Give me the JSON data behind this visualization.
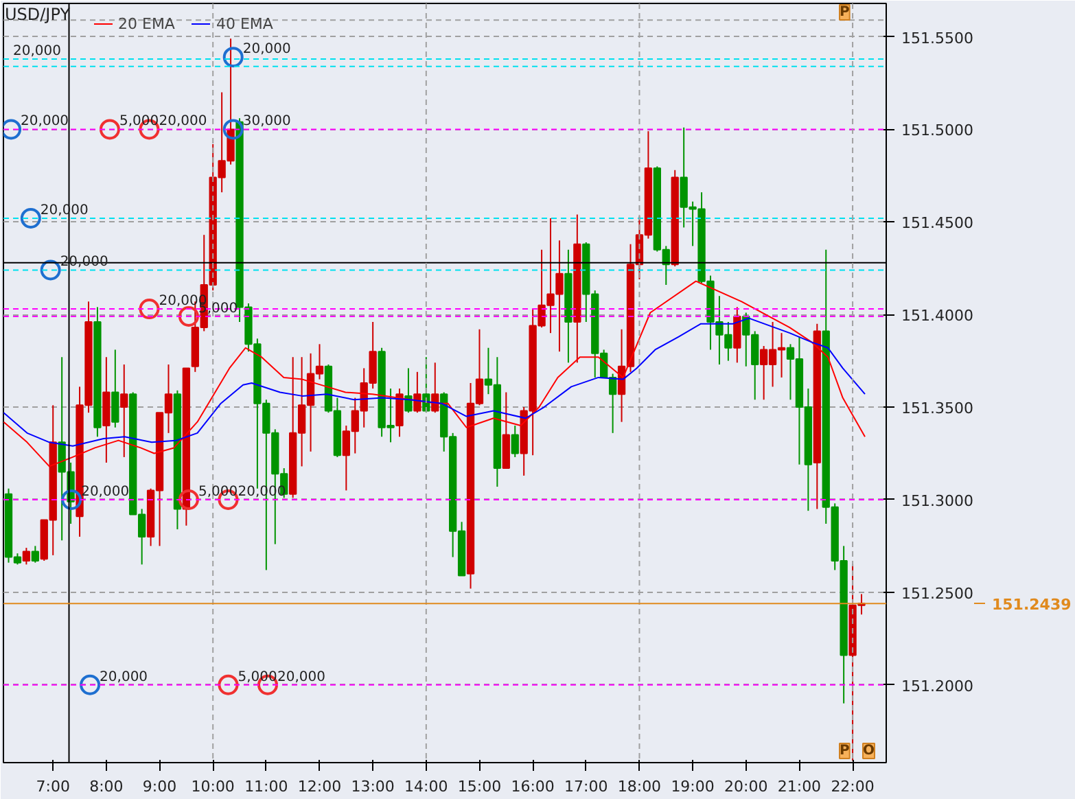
{
  "chart_data": {
    "type": "candlestick",
    "title": "USD/JPY",
    "x": [
      6.1667,
      6.3333,
      6.5,
      6.6667,
      6.8333,
      7,
      7.1667,
      7.3333,
      7.5,
      7.6667,
      7.8333,
      8,
      8.1667,
      8.3333,
      8.5,
      8.6667,
      8.8333,
      9,
      9.1667,
      9.3333,
      9.5,
      9.6667,
      9.8333,
      10,
      10.1667,
      10.3333,
      10.5,
      10.6667,
      10.8333,
      11,
      11.1667,
      11.3333,
      11.5,
      11.6667,
      11.8333,
      12,
      12.1667,
      12.3333,
      12.5,
      12.6667,
      12.8333,
      13,
      13.1667,
      13.3333,
      13.5,
      13.6667,
      13.8333,
      14,
      14.1667,
      14.3333,
      14.5,
      14.6667,
      14.8333,
      15,
      15.1667,
      15.3333,
      15.5,
      15.6667,
      15.8333,
      16,
      16.1667,
      16.3333,
      16.5,
      16.6667,
      16.8333,
      17,
      17.1667,
      17.3333,
      17.5,
      17.6667,
      17.8333,
      18,
      18.1667,
      18.3333,
      18.5,
      18.6667,
      18.8333,
      19,
      19.1667,
      19.3333,
      19.5,
      19.6667,
      19.8333,
      20,
      20.1667,
      20.3333,
      20.5,
      20.6667,
      20.8333,
      21,
      21.1667,
      21.3333,
      21.5,
      21.6667,
      21.8333,
      22,
      22.1667
    ],
    "ohlc": [
      [
        151.303,
        151.306,
        151.266,
        151.269
      ],
      [
        151.269,
        151.271,
        151.265,
        151.266
      ],
      [
        151.267,
        151.274,
        151.265,
        151.272
      ],
      [
        151.272,
        151.275,
        151.266,
        151.267
      ],
      [
        151.268,
        151.289,
        151.267,
        151.289
      ],
      [
        151.289,
        151.351,
        151.27,
        151.331
      ],
      [
        151.331,
        151.377,
        151.278,
        151.315
      ],
      [
        151.315,
        151.32,
        151.287,
        151.299
      ],
      [
        151.291,
        151.361,
        151.28,
        151.351
      ],
      [
        151.351,
        151.407,
        151.347,
        151.396
      ],
      [
        151.396,
        151.404,
        151.334,
        151.339
      ],
      [
        151.34,
        151.377,
        151.32,
        151.358
      ],
      [
        151.358,
        151.381,
        151.339,
        151.342
      ],
      [
        151.35,
        151.373,
        151.323,
        151.357
      ],
      [
        151.357,
        151.358,
        151.292,
        151.292
      ],
      [
        151.292,
        151.295,
        151.265,
        151.28
      ],
      [
        151.28,
        151.306,
        151.275,
        151.305
      ],
      [
        151.305,
        151.347,
        151.275,
        151.347
      ],
      [
        151.347,
        151.373,
        151.336,
        151.357
      ],
      [
        151.357,
        151.359,
        151.284,
        151.295
      ],
      [
        151.295,
        151.371,
        151.286,
        151.371
      ],
      [
        151.372,
        151.407,
        151.369,
        151.393
      ],
      [
        151.393,
        151.443,
        151.391,
        151.416
      ],
      [
        151.416,
        151.492,
        151.413,
        151.474
      ],
      [
        151.474,
        151.52,
        151.466,
        151.483
      ],
      [
        151.483,
        151.549,
        151.481,
        151.5
      ],
      [
        151.504,
        151.506,
        151.396,
        151.404
      ],
      [
        151.404,
        151.406,
        151.38,
        151.384
      ],
      [
        151.384,
        151.387,
        151.306,
        151.352
      ],
      [
        151.352,
        151.354,
        151.262,
        151.336
      ],
      [
        151.336,
        151.338,
        151.276,
        151.314
      ],
      [
        151.314,
        151.317,
        151.301,
        151.303
      ],
      [
        151.303,
        151.377,
        151.301,
        151.336
      ],
      [
        151.336,
        151.377,
        151.318,
        151.351
      ],
      [
        151.351,
        151.379,
        151.326,
        151.368
      ],
      [
        151.368,
        151.384,
        151.365,
        151.372
      ],
      [
        151.372,
        151.373,
        151.347,
        151.348
      ],
      [
        151.348,
        151.355,
        151.323,
        151.324
      ],
      [
        151.324,
        151.34,
        151.305,
        151.337
      ],
      [
        151.337,
        151.355,
        151.325,
        151.348
      ],
      [
        151.348,
        151.371,
        151.339,
        151.363
      ],
      [
        151.363,
        151.396,
        151.36,
        151.38
      ],
      [
        151.38,
        151.382,
        151.334,
        151.339
      ],
      [
        151.34,
        151.36,
        151.331,
        151.339
      ],
      [
        151.34,
        151.36,
        151.334,
        151.357
      ],
      [
        151.356,
        151.371,
        151.347,
        151.348
      ],
      [
        151.348,
        151.369,
        151.347,
        151.357
      ],
      [
        151.357,
        151.377,
        151.347,
        151.348
      ],
      [
        151.348,
        151.374,
        151.347,
        151.357
      ],
      [
        151.357,
        151.358,
        151.326,
        151.334
      ],
      [
        151.334,
        151.336,
        151.269,
        151.283
      ],
      [
        151.283,
        151.288,
        151.259,
        151.259
      ],
      [
        151.26,
        151.363,
        151.252,
        151.352
      ],
      [
        151.352,
        151.392,
        151.351,
        151.365
      ],
      [
        151.365,
        151.382,
        151.357,
        151.362
      ],
      [
        151.362,
        151.377,
        151.307,
        151.317
      ],
      [
        151.317,
        151.358,
        151.317,
        151.335
      ],
      [
        151.335,
        151.34,
        151.323,
        151.325
      ],
      [
        151.325,
        151.35,
        151.313,
        151.348
      ],
      [
        151.348,
        151.403,
        151.324,
        151.394
      ],
      [
        151.394,
        151.435,
        151.393,
        151.405
      ],
      [
        151.405,
        151.452,
        151.39,
        151.411
      ],
      [
        151.411,
        151.44,
        151.38,
        151.422
      ],
      [
        151.422,
        151.435,
        151.374,
        151.396
      ],
      [
        151.396,
        151.454,
        151.374,
        151.438
      ],
      [
        151.438,
        151.439,
        151.396,
        151.411
      ],
      [
        151.411,
        151.413,
        151.366,
        151.379
      ],
      [
        151.379,
        151.381,
        151.366,
        151.366
      ],
      [
        151.366,
        151.368,
        151.336,
        151.357
      ],
      [
        151.357,
        151.392,
        151.342,
        151.372
      ],
      [
        151.372,
        151.438,
        151.369,
        151.427
      ],
      [
        151.427,
        151.453,
        151.419,
        151.443
      ],
      [
        151.443,
        151.499,
        151.441,
        151.479
      ],
      [
        151.479,
        151.48,
        151.434,
        151.435
      ],
      [
        151.435,
        151.437,
        151.416,
        151.427
      ],
      [
        151.427,
        151.478,
        151.426,
        151.474
      ],
      [
        151.474,
        151.501,
        151.447,
        151.458
      ],
      [
        151.458,
        151.461,
        151.437,
        151.457
      ],
      [
        151.457,
        151.466,
        151.417,
        151.418
      ],
      [
        151.418,
        151.421,
        151.381,
        151.396
      ],
      [
        151.396,
        151.41,
        151.373,
        151.389
      ],
      [
        151.389,
        151.396,
        151.375,
        151.382
      ],
      [
        151.382,
        151.404,
        151.374,
        151.399
      ],
      [
        151.399,
        151.401,
        151.372,
        151.389
      ],
      [
        151.389,
        151.391,
        151.354,
        151.373
      ],
      [
        151.373,
        151.383,
        151.354,
        151.381
      ],
      [
        151.373,
        151.396,
        151.361,
        151.381
      ],
      [
        151.381,
        151.39,
        151.366,
        151.382
      ],
      [
        151.382,
        151.384,
        151.354,
        151.376
      ],
      [
        151.376,
        151.388,
        151.319,
        151.35
      ],
      [
        151.35,
        151.36,
        151.294,
        151.319
      ],
      [
        151.32,
        151.395,
        151.295,
        151.391
      ],
      [
        151.391,
        151.435,
        151.287,
        151.296
      ],
      [
        151.296,
        151.298,
        151.262,
        151.267
      ],
      [
        151.267,
        151.275,
        151.19,
        151.216
      ],
      [
        151.216,
        151.265,
        151.159,
        151.243
      ],
      [
        151.243,
        151.249,
        151.238,
        151.244
      ]
    ],
    "colors": [
      "#009400",
      "#009400",
      "#d00000",
      "#009400",
      "#d00000",
      "#d00000",
      "#009400",
      "#009400",
      "#d00000",
      "#d00000",
      "#009400",
      "#d00000",
      "#009400",
      "#d00000",
      "#009400",
      "#009400",
      "#d00000",
      "#d00000",
      "#d00000",
      "#009400",
      "#d00000",
      "#d00000",
      "#d00000",
      "#d00000",
      "#d00000",
      "#d00000",
      "#009400",
      "#009400",
      "#009400",
      "#009400",
      "#009400",
      "#009400",
      "#d00000",
      "#d00000",
      "#d00000",
      "#d00000",
      "#009400",
      "#009400",
      "#d00000",
      "#d00000",
      "#d00000",
      "#d00000",
      "#009400",
      "#009400",
      "#d00000",
      "#009400",
      "#d00000",
      "#009400",
      "#d00000",
      "#009400",
      "#009400",
      "#009400",
      "#d00000",
      "#d00000",
      "#009400",
      "#009400",
      "#d00000",
      "#009400",
      "#d00000",
      "#d00000",
      "#d00000",
      "#d00000",
      "#d00000",
      "#009400",
      "#d00000",
      "#009400",
      "#009400",
      "#009400",
      "#009400",
      "#d00000",
      "#d00000",
      "#d00000",
      "#d00000",
      "#009400",
      "#009400",
      "#d00000",
      "#009400",
      "#009400",
      "#009400",
      "#009400",
      "#009400",
      "#009400",
      "#d00000",
      "#009400",
      "#009400",
      "#d00000",
      "#d00000",
      "#d00000",
      "#009400",
      "#009400",
      "#009400",
      "#d00000",
      "#009400",
      "#009400",
      "#009400",
      "#d00000",
      "#d00000"
    ],
    "series": [
      {
        "name": "20 EMA",
        "type": "line",
        "color": "#ff0000",
        "x": [
          6.074,
          6.514,
          6.931,
          7.37,
          7.787,
          8.227,
          8.644,
          8.898,
          9.269,
          9.708,
          10.31,
          10.611,
          10.912,
          11.329,
          11.676,
          12.139,
          12.486,
          12.995,
          14.199,
          14.407,
          14.755,
          15.264,
          15.773,
          16.12,
          16.468,
          16.884,
          17.231,
          17.694,
          18.204,
          19.06,
          19.917,
          20.819,
          21.236,
          21.537,
          21.815,
          22.231
        ],
        "values": [
          151.342,
          151.331,
          151.318,
          151.323,
          151.328,
          151.332,
          151.328,
          151.325,
          151.328,
          151.342,
          151.371,
          151.382,
          151.377,
          151.366,
          151.365,
          151.361,
          151.358,
          151.357,
          151.352,
          151.352,
          151.339,
          151.344,
          151.34,
          151.35,
          151.366,
          151.377,
          151.377,
          151.366,
          151.401,
          151.418,
          151.407,
          151.393,
          151.385,
          151.377,
          151.355,
          151.334
        ]
      },
      {
        "name": "40 EMA",
        "type": "line",
        "color": "#0000ff",
        "x": [
          6.074,
          6.514,
          6.931,
          7.37,
          7.949,
          8.343,
          8.852,
          9.315,
          9.708,
          10.148,
          10.565,
          10.727,
          11.259,
          11.676,
          12.139,
          12.648,
          13.181,
          13.69,
          14.292,
          14.755,
          15.264,
          15.866,
          16.213,
          16.722,
          17.231,
          17.694,
          17.949,
          18.296,
          18.736,
          19.153,
          19.755,
          20.056,
          20.819,
          21.236,
          21.537,
          21.815,
          22.231
        ],
        "values": [
          151.347,
          151.336,
          151.331,
          151.329,
          151.333,
          151.334,
          151.331,
          151.332,
          151.336,
          151.352,
          151.362,
          151.363,
          151.358,
          151.356,
          151.357,
          151.354,
          151.355,
          151.354,
          151.352,
          151.345,
          151.348,
          151.344,
          151.35,
          151.361,
          151.366,
          151.365,
          151.371,
          151.381,
          151.388,
          151.395,
          151.395,
          151.398,
          151.39,
          151.385,
          151.382,
          151.371,
          151.357
        ]
      },
      {
        "type": "scatter",
        "marker": "circle",
        "color": "#1e6fd0",
        "x": [
          6.213,
          6.583,
          6.954,
          7.347,
          7.694,
          10.38,
          10.38
        ],
        "values": [
          151.5,
          151.452,
          151.424,
          151.3,
          151.2,
          151.539,
          151.5
        ]
      },
      {
        "type": "scatter",
        "marker": "circle",
        "color": "#f03030",
        "x": [
          8.065,
          8.806,
          8.806,
          9.546,
          9.546,
          10.287,
          10.287,
          11.028
        ],
        "values": [
          151.5,
          151.5,
          151.403,
          151.399,
          151.3,
          151.3,
          151.2,
          151.2
        ]
      }
    ],
    "xlim": [
      6.07,
      22.63
    ],
    "xticks": [
      {
        "value": 7,
        "label": "7:00"
      },
      {
        "value": 8,
        "label": "8:00"
      },
      {
        "value": 9,
        "label": "9:00"
      },
      {
        "value": 10,
        "label": "10:00"
      },
      {
        "value": 11,
        "label": "11:00"
      },
      {
        "value": 12,
        "label": "12:00"
      },
      {
        "value": 13,
        "label": "13:00"
      },
      {
        "value": 14,
        "label": "14:00"
      },
      {
        "value": 15,
        "label": "15:00"
      },
      {
        "value": 16,
        "label": "16:00"
      },
      {
        "value": 17,
        "label": "17:00"
      },
      {
        "value": 18,
        "label": "18:00"
      },
      {
        "value": 19,
        "label": "19:00"
      },
      {
        "value": 20,
        "label": "20:00"
      },
      {
        "value": 21,
        "label": "21:00"
      },
      {
        "value": 22,
        "label": "22:00"
      }
    ],
    "ylim": [
      151.158,
      151.568
    ],
    "yticks": [
      {
        "value": 151.2,
        "label": "151.2000"
      },
      {
        "value": 151.25,
        "label": "151.2500"
      },
      {
        "value": 151.3,
        "label": "151.3000"
      },
      {
        "value": 151.35,
        "label": "151.3500"
      },
      {
        "value": 151.4,
        "label": "151.4000"
      },
      {
        "value": 151.45,
        "label": "151.4500"
      },
      {
        "value": 151.5,
        "label": "151.5000"
      },
      {
        "value": 151.55,
        "label": "151.5500"
      }
    ],
    "grid": "y",
    "legend": "top left",
    "ref_lines": [
      {
        "axis": "y",
        "value": 151.559,
        "color": "#a0a0a0",
        "line_style": "dashed"
      },
      {
        "axis": "y",
        "value": 151.538,
        "color": "#00e0ee",
        "line_style": "dashed"
      },
      {
        "axis": "y",
        "value": 151.534,
        "color": "#00e0ee",
        "line_style": "dashed"
      },
      {
        "axis": "y",
        "value": 151.5,
        "color": "#ff00ff",
        "line_style": "dashed"
      },
      {
        "axis": "y",
        "value": 151.452,
        "color": "#00e0ee",
        "line_style": "dashed"
      },
      {
        "axis": "y",
        "value": 151.424,
        "color": "#00e0ee",
        "line_style": "dashed"
      },
      {
        "axis": "y",
        "value": 151.403,
        "color": "#ff00ff",
        "line_style": "dashed"
      },
      {
        "axis": "y",
        "value": 151.399,
        "color": "#ff00ff",
        "line_style": "dashed"
      },
      {
        "axis": "y",
        "value": 151.3,
        "color": "#ff00ff",
        "line_style": "dashed"
      },
      {
        "axis": "y",
        "value": 151.2,
        "color": "#ff00ff",
        "line_style": "dashed"
      },
      {
        "axis": "y",
        "value": 151.428,
        "color": "#000000",
        "line_style": "solid"
      },
      {
        "axis": "x",
        "value": 7.3,
        "color": "#000000",
        "line_style": "solid"
      },
      {
        "axis": "x",
        "value": 10,
        "color": "#a0a0a0",
        "line_style": "dashed"
      },
      {
        "axis": "x",
        "value": 14,
        "color": "#a0a0a0",
        "line_style": "dashed"
      },
      {
        "axis": "x",
        "value": 18,
        "color": "#a0a0a0",
        "line_style": "dashed"
      },
      {
        "axis": "x",
        "value": 22,
        "color": "#a0a0a0",
        "line_style": "dashed"
      },
      {
        "axis": "y",
        "value": 151.2439,
        "label": "151.2439",
        "color": "#e08a1e",
        "line_style": "solid"
      }
    ],
    "annotations": [
      {
        "text": "20,000",
        "x": 6.07,
        "y": 151.538
      },
      {
        "text": "20,000",
        "x": 6.213,
        "y": 151.5
      },
      {
        "text": "20,000",
        "x": 6.583,
        "y": 151.452
      },
      {
        "text": "20,000",
        "x": 6.954,
        "y": 151.424
      },
      {
        "text": "20,000",
        "x": 7.347,
        "y": 151.3
      },
      {
        "text": "20,000",
        "x": 7.694,
        "y": 151.2
      },
      {
        "text": "20,000",
        "x": 10.38,
        "y": 151.539
      },
      {
        "text": "30,000",
        "x": 10.38,
        "y": 151.5
      },
      {
        "text": "5,000",
        "x": 8.065,
        "y": 151.5
      },
      {
        "text": "20,000",
        "x": 8.806,
        "y": 151.5
      },
      {
        "text": "20,000",
        "x": 8.806,
        "y": 151.403
      },
      {
        "text": "5,000",
        "x": 9.546,
        "y": 151.399
      },
      {
        "text": "5,000",
        "x": 9.546,
        "y": 151.3
      },
      {
        "text": "20,000",
        "x": 10.287,
        "y": 151.3
      },
      {
        "text": "5,000",
        "x": 10.287,
        "y": 151.2
      },
      {
        "text": "20,000",
        "x": 11.028,
        "y": 151.2
      },
      "P",
      "P",
      "O"
    ]
  }
}
